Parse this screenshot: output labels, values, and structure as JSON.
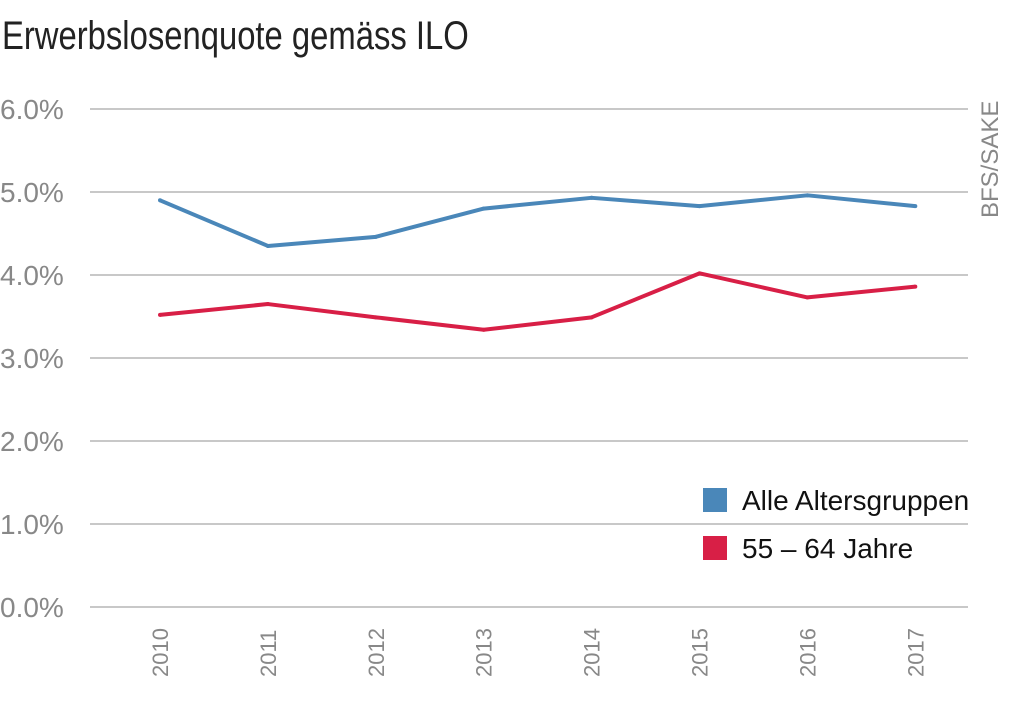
{
  "chart_data": {
    "type": "line",
    "title": "Erwerbslosenquote gemäss ILO",
    "source": "BFS/SAKE",
    "xlabel": "",
    "ylabel": "",
    "x": [
      "2010",
      "2011",
      "2012",
      "2013",
      "2014",
      "2015",
      "2016",
      "2017"
    ],
    "ylim": [
      0,
      6
    ],
    "yticks": [
      "0.0%",
      "1.0%",
      "2.0%",
      "3.0%",
      "4.0%",
      "5.0%",
      "6.0%"
    ],
    "grid": true,
    "legend_position": "bottom-right",
    "series": [
      {
        "name": "Alle Altersgruppen",
        "color": "#4a87b9",
        "values": [
          4.9,
          4.35,
          4.46,
          4.8,
          4.93,
          4.83,
          4.96,
          4.83
        ]
      },
      {
        "name": "55 – 64 Jahre",
        "color": "#d81f46",
        "values": [
          3.52,
          3.65,
          3.49,
          3.34,
          3.49,
          4.02,
          3.73,
          3.86
        ]
      }
    ]
  }
}
